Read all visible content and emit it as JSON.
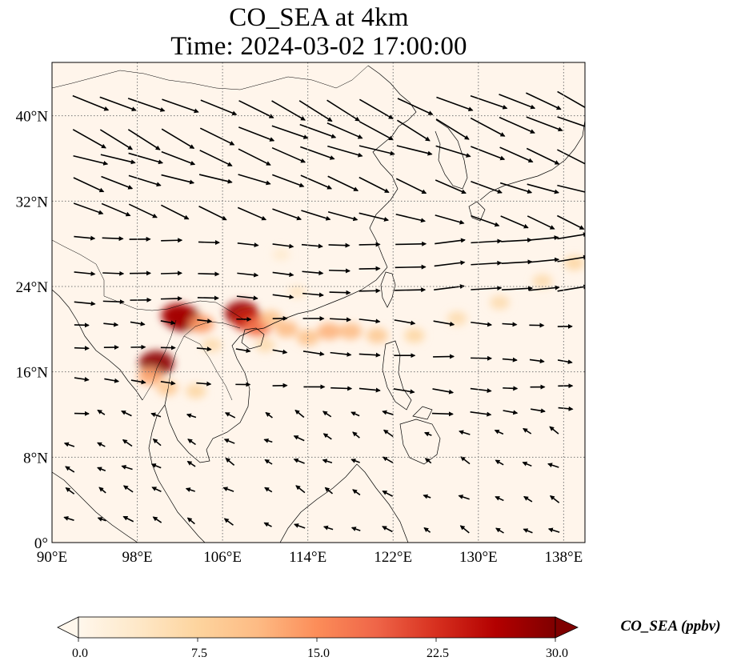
{
  "title": {
    "line1": "CO_SEA at 4km",
    "line2": "Time: 2024-03-02 17:00:00"
  },
  "map": {
    "extent": {
      "lon_min": 90,
      "lon_max": 140,
      "lat_min": 0,
      "lat_max": 45
    },
    "lat_ticks": [
      {
        "value": 0,
        "label": "0°"
      },
      {
        "value": 8,
        "label": "8°N"
      },
      {
        "value": 16,
        "label": "16°N"
      },
      {
        "value": 24,
        "label": "24°N"
      },
      {
        "value": 32,
        "label": "32°N"
      },
      {
        "value": 40,
        "label": "40°N"
      }
    ],
    "lon_ticks": [
      {
        "value": 90,
        "label": "90°E"
      },
      {
        "value": 98,
        "label": "98°E"
      },
      {
        "value": 106,
        "label": "106°E"
      },
      {
        "value": 114,
        "label": "114°E"
      },
      {
        "value": 122,
        "label": "122°E"
      },
      {
        "value": 130,
        "label": "130°E"
      },
      {
        "value": 138,
        "label": "138°E"
      }
    ],
    "gridlines": true,
    "background_color": "#fff5eb",
    "plumes": [
      {
        "lon": 102.3,
        "lat": 21.0,
        "value": 30
      },
      {
        "lon": 101.8,
        "lat": 21.3,
        "value": 27
      },
      {
        "lon": 104.0,
        "lat": 20.5,
        "value": 14
      },
      {
        "lon": 107.8,
        "lat": 21.5,
        "value": 28
      },
      {
        "lon": 108.5,
        "lat": 20.8,
        "value": 24
      },
      {
        "lon": 109.3,
        "lat": 20.2,
        "value": 17
      },
      {
        "lon": 110.5,
        "lat": 21.0,
        "value": 10
      },
      {
        "lon": 112.0,
        "lat": 20.0,
        "value": 11
      },
      {
        "lon": 114.0,
        "lat": 19.2,
        "value": 10
      },
      {
        "lon": 116.0,
        "lat": 19.8,
        "value": 12
      },
      {
        "lon": 118.0,
        "lat": 19.8,
        "value": 11
      },
      {
        "lon": 120.5,
        "lat": 19.4,
        "value": 9
      },
      {
        "lon": 124.0,
        "lat": 19.4,
        "value": 7
      },
      {
        "lon": 128.0,
        "lat": 21.0,
        "value": 6
      },
      {
        "lon": 132.0,
        "lat": 22.5,
        "value": 6
      },
      {
        "lon": 136.0,
        "lat": 24.5,
        "value": 6
      },
      {
        "lon": 139.0,
        "lat": 26.2,
        "value": 7
      },
      {
        "lon": 99.8,
        "lat": 16.8,
        "value": 29
      },
      {
        "lon": 99.2,
        "lat": 15.6,
        "value": 13
      },
      {
        "lon": 100.8,
        "lat": 14.5,
        "value": 9
      },
      {
        "lon": 103.5,
        "lat": 14.2,
        "value": 7
      },
      {
        "lon": 105.0,
        "lat": 18.5,
        "value": 6
      },
      {
        "lon": 110.0,
        "lat": 18.5,
        "value": 6
      },
      {
        "lon": 113.0,
        "lat": 23.5,
        "value": 4
      },
      {
        "lon": 111.5,
        "lat": 27.0,
        "value": 3
      }
    ],
    "coastline_color": "#000000",
    "wind_vector_color": "#000000"
  },
  "colorbar": {
    "title": "CO_SEA (ppbv)",
    "min": 0.0,
    "max": 30.0,
    "ticks": [
      "0.0",
      "7.5",
      "15.0",
      "22.5",
      "30.0"
    ],
    "extend": "both",
    "colormap": "OrRd",
    "colors": [
      "#fff7ec",
      "#fee8c8",
      "#fdd49e",
      "#fdbb84",
      "#fc8d59",
      "#ef6548",
      "#d7301f",
      "#b30000",
      "#7f0000"
    ]
  }
}
